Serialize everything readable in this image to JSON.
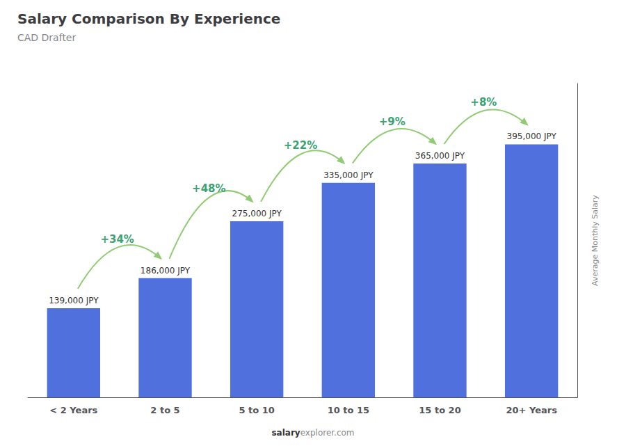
{
  "chart_data": {
    "type": "bar",
    "title": "Salary Comparison By Experience",
    "subtitle": "CAD Drafter",
    "ylabel": "Average Monthly Salary",
    "footer": [
      "salary",
      "explorer.com"
    ],
    "categories": [
      "< 2 Years",
      "2 to 5",
      "5 to 10",
      "10 to 15",
      "15 to 20",
      "20+ Years"
    ],
    "values": [
      139000,
      186000,
      275000,
      335000,
      365000,
      395000
    ],
    "value_labels": [
      "139,000 JPY",
      "186,000 JPY",
      "275,000 JPY",
      "335,000 JPY",
      "365,000 JPY",
      "395,000 JPY"
    ],
    "data_labels": true,
    "annotations": [
      "+34%",
      "+48%",
      "+22%",
      "+9%",
      "+8%"
    ],
    "ylim": [
      0,
      490000
    ],
    "grid": false,
    "tick_labels": "x"
  }
}
